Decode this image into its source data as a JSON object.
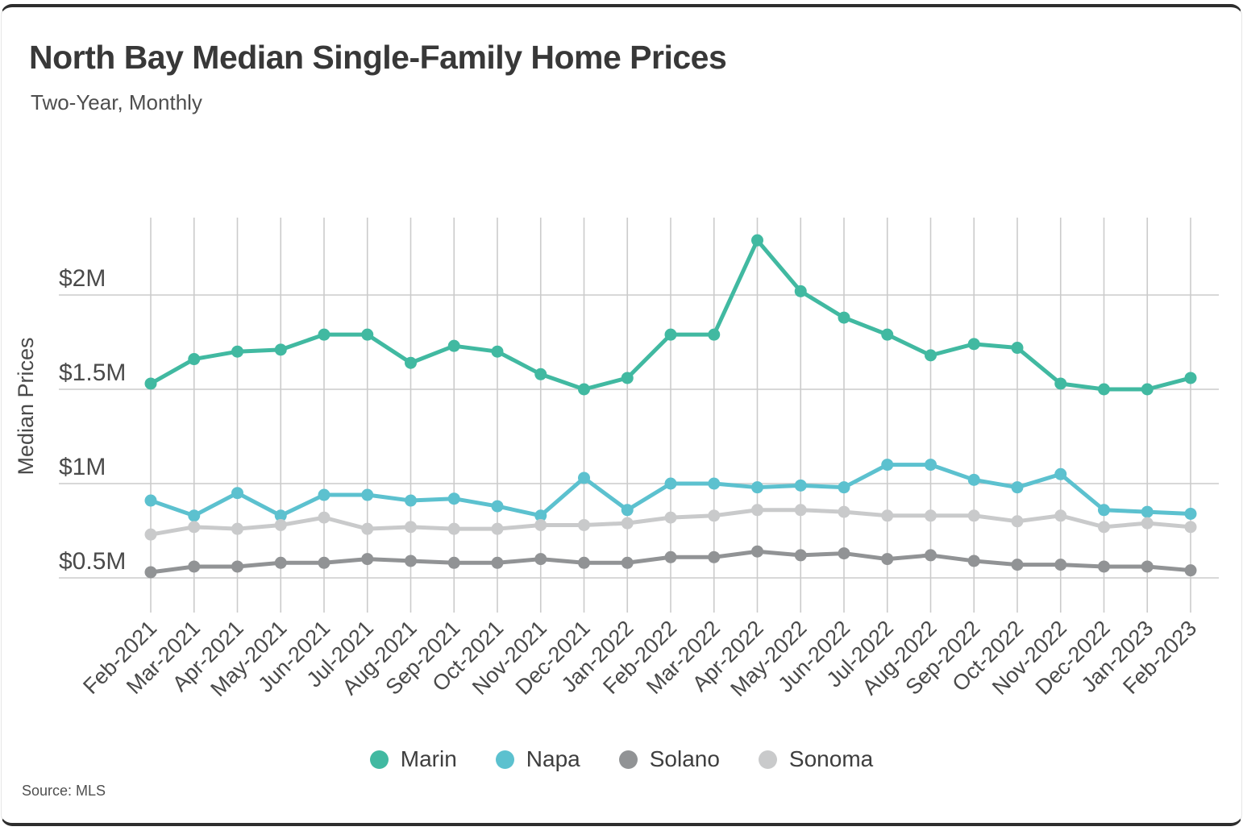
{
  "chart_data": {
    "type": "line",
    "title": "North Bay Median Single-Family Home Prices",
    "subtitle": "Two-Year, Monthly",
    "ylabel": "Median Prices",
    "xlabel": "",
    "unit": "USD millions",
    "source": "Source: MLS",
    "grid": true,
    "legend_position": "bottom",
    "x_tick_angle": -45,
    "ylim": [
      0.3,
      2.42
    ],
    "x": [
      "Feb-2021",
      "Mar-2021",
      "Apr-2021",
      "May-2021",
      "Jun-2021",
      "Jul-2021",
      "Aug-2021",
      "Sep-2021",
      "Oct-2021",
      "Nov-2021",
      "Dec-2021",
      "Jan-2022",
      "Feb-2022",
      "Mar-2022",
      "Apr-2022",
      "May-2022",
      "Jun-2022",
      "Jul-2022",
      "Aug-2022",
      "Sep-2022",
      "Oct-2022",
      "Nov-2022",
      "Dec-2022",
      "Jan-2023",
      "Feb-2023"
    ],
    "y_ticks": [
      {
        "label": "$2M",
        "value": 2.0
      },
      {
        "label": "$1.5M",
        "value": 1.5
      },
      {
        "label": "$1M",
        "value": 1.0
      },
      {
        "label": "$0.5M",
        "value": 0.5
      }
    ],
    "series": [
      {
        "name": "Marin",
        "color": "#41B9A1",
        "values": [
          1.53,
          1.66,
          1.7,
          1.71,
          1.79,
          1.79,
          1.64,
          1.73,
          1.7,
          1.58,
          1.5,
          1.56,
          1.79,
          1.79,
          2.29,
          2.02,
          1.88,
          1.79,
          1.68,
          1.74,
          1.72,
          1.53,
          1.5,
          1.5,
          1.56
        ]
      },
      {
        "name": "Napa",
        "color": "#5CC1CF",
        "values": [
          0.91,
          0.83,
          0.95,
          0.83,
          0.94,
          0.94,
          0.91,
          0.92,
          0.88,
          0.83,
          1.03,
          0.86,
          1.0,
          1.0,
          0.98,
          0.99,
          0.98,
          1.1,
          1.1,
          1.02,
          0.98,
          1.05,
          0.86,
          0.85,
          0.84
        ]
      },
      {
        "name": "Solano",
        "color": "#919395",
        "values": [
          0.53,
          0.56,
          0.56,
          0.58,
          0.58,
          0.6,
          0.59,
          0.58,
          0.58,
          0.6,
          0.58,
          0.58,
          0.61,
          0.61,
          0.64,
          0.62,
          0.63,
          0.6,
          0.62,
          0.59,
          0.57,
          0.57,
          0.56,
          0.56,
          0.54
        ]
      },
      {
        "name": "Sonoma",
        "color": "#C9CACB",
        "values": [
          0.73,
          0.77,
          0.76,
          0.78,
          0.82,
          0.76,
          0.77,
          0.76,
          0.76,
          0.78,
          0.78,
          0.79,
          0.82,
          0.83,
          0.86,
          0.86,
          0.85,
          0.83,
          0.83,
          0.83,
          0.8,
          0.83,
          0.77,
          0.79,
          0.77
        ]
      }
    ],
    "style": {
      "gridline_color": "#cbcbcb",
      "title_color": "#383838",
      "tick_label_color": "#4a4a4a"
    }
  }
}
